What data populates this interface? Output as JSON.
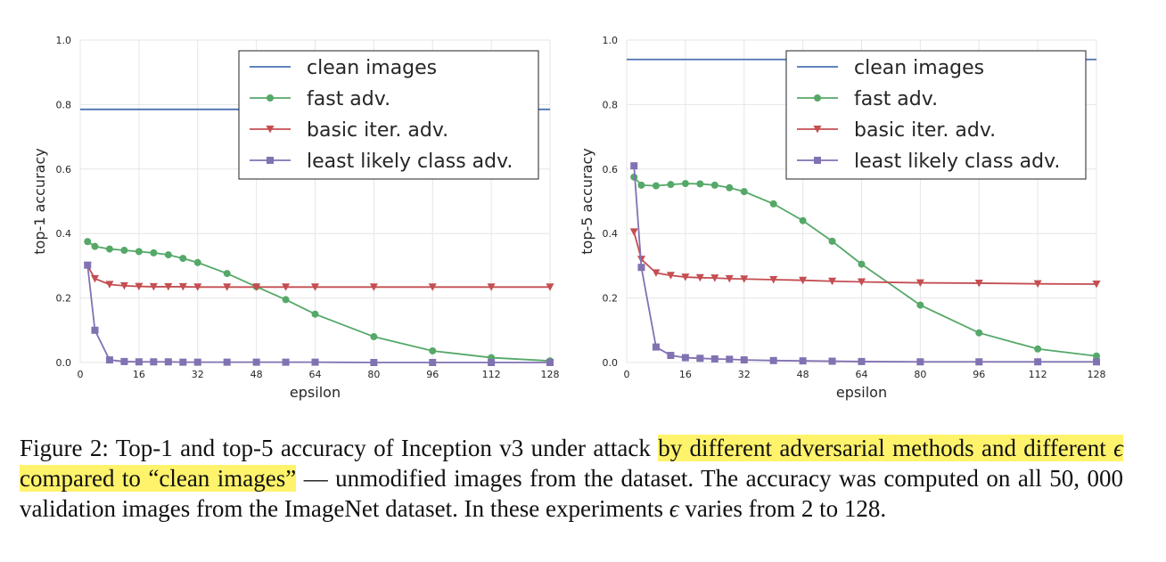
{
  "chart_data": [
    {
      "type": "line",
      "ylabel": "top-1 accuracy",
      "xlabel": "epsilon",
      "xlim": [
        0,
        128
      ],
      "ylim": [
        0,
        1.0
      ],
      "xticks": [
        "0",
        "16",
        "32",
        "48",
        "64",
        "80",
        "96",
        "112",
        "128"
      ],
      "yticks": [
        "0.0",
        "0.2",
        "0.4",
        "0.6",
        "0.8",
        "1.0"
      ],
      "grid": true,
      "legend_position": "top-right",
      "series": [
        {
          "name": "clean images",
          "color": "#4c72b0",
          "marker": "none",
          "x": [
            0,
            128
          ],
          "y": [
            0.785,
            0.785
          ]
        },
        {
          "name": "fast adv.",
          "color": "#55a868",
          "marker": "circle",
          "x": [
            2,
            4,
            8,
            12,
            16,
            20,
            24,
            28,
            32,
            40,
            48,
            56,
            64,
            80,
            96,
            112,
            128
          ],
          "y": [
            0.375,
            0.36,
            0.352,
            0.348,
            0.344,
            0.34,
            0.334,
            0.323,
            0.31,
            0.276,
            0.235,
            0.195,
            0.15,
            0.08,
            0.036,
            0.015,
            0.005
          ]
        },
        {
          "name": "basic iter. adv.",
          "color": "#c44e52",
          "marker": "triangle-down",
          "x": [
            2,
            4,
            8,
            12,
            16,
            20,
            24,
            28,
            32,
            40,
            48,
            56,
            64,
            80,
            96,
            112,
            128
          ],
          "y": [
            0.3,
            0.26,
            0.242,
            0.238,
            0.236,
            0.235,
            0.235,
            0.235,
            0.234,
            0.234,
            0.234,
            0.234,
            0.234,
            0.234,
            0.234,
            0.234,
            0.234
          ]
        },
        {
          "name": "least likely class adv.",
          "color": "#8172b2",
          "marker": "square",
          "x": [
            2,
            4,
            8,
            12,
            16,
            20,
            24,
            28,
            32,
            40,
            48,
            56,
            64,
            80,
            96,
            112,
            128
          ],
          "y": [
            0.302,
            0.1,
            0.008,
            0.003,
            0.002,
            0.002,
            0.002,
            0.001,
            0.001,
            0.001,
            0.001,
            0.001,
            0.001,
            0.0,
            0.0,
            0.0,
            0.0
          ]
        }
      ],
      "legend": [
        "clean images",
        "fast adv.",
        "basic iter. adv.",
        "least likely class adv."
      ]
    },
    {
      "type": "line",
      "ylabel": "top-5 accuracy",
      "xlabel": "epsilon",
      "xlim": [
        0,
        128
      ],
      "ylim": [
        0,
        1.0
      ],
      "xticks": [
        "0",
        "16",
        "32",
        "48",
        "64",
        "80",
        "96",
        "112",
        "128"
      ],
      "yticks": [
        "0.0",
        "0.2",
        "0.4",
        "0.6",
        "0.8",
        "1.0"
      ],
      "grid": true,
      "legend_position": "top-right",
      "series": [
        {
          "name": "clean images",
          "color": "#4c72b0",
          "marker": "none",
          "x": [
            0,
            128
          ],
          "y": [
            0.94,
            0.94
          ]
        },
        {
          "name": "fast adv.",
          "color": "#55a868",
          "marker": "circle",
          "x": [
            2,
            4,
            8,
            12,
            16,
            20,
            24,
            28,
            32,
            40,
            48,
            56,
            64,
            80,
            96,
            112,
            128
          ],
          "y": [
            0.575,
            0.55,
            0.548,
            0.552,
            0.555,
            0.554,
            0.55,
            0.542,
            0.53,
            0.492,
            0.44,
            0.376,
            0.305,
            0.178,
            0.092,
            0.042,
            0.02
          ]
        },
        {
          "name": "basic iter. adv.",
          "color": "#c44e52",
          "marker": "triangle-down",
          "x": [
            2,
            4,
            8,
            12,
            16,
            20,
            24,
            28,
            32,
            40,
            48,
            56,
            64,
            80,
            96,
            112,
            128
          ],
          "y": [
            0.405,
            0.32,
            0.278,
            0.27,
            0.265,
            0.263,
            0.262,
            0.26,
            0.259,
            0.257,
            0.255,
            0.252,
            0.25,
            0.247,
            0.246,
            0.244,
            0.243
          ]
        },
        {
          "name": "least likely class adv.",
          "color": "#8172b2",
          "marker": "square",
          "x": [
            2,
            4,
            8,
            12,
            16,
            20,
            24,
            28,
            32,
            40,
            48,
            56,
            64,
            80,
            96,
            112,
            128
          ],
          "y": [
            0.61,
            0.295,
            0.048,
            0.022,
            0.015,
            0.013,
            0.011,
            0.01,
            0.008,
            0.006,
            0.005,
            0.004,
            0.003,
            0.002,
            0.002,
            0.002,
            0.002
          ]
        }
      ],
      "legend": [
        "clean images",
        "fast adv.",
        "basic iter. adv.",
        "least likely class adv."
      ]
    }
  ],
  "caption": {
    "part1": "Figure 2: Top-1 and top-5 accuracy of Inception v3 under attack ",
    "hl1": "by different adversarial methods and different ",
    "eps1": "ϵ",
    "hl2": " compared to “clean images”",
    "part2": " — unmodified images from the dataset. The accuracy was computed on all ",
    "num": "50, 000",
    "part3": " validation images from the ImageNet dataset. In these experiments ",
    "eps2": "ϵ",
    "part4": " varies from 2 to 128."
  }
}
